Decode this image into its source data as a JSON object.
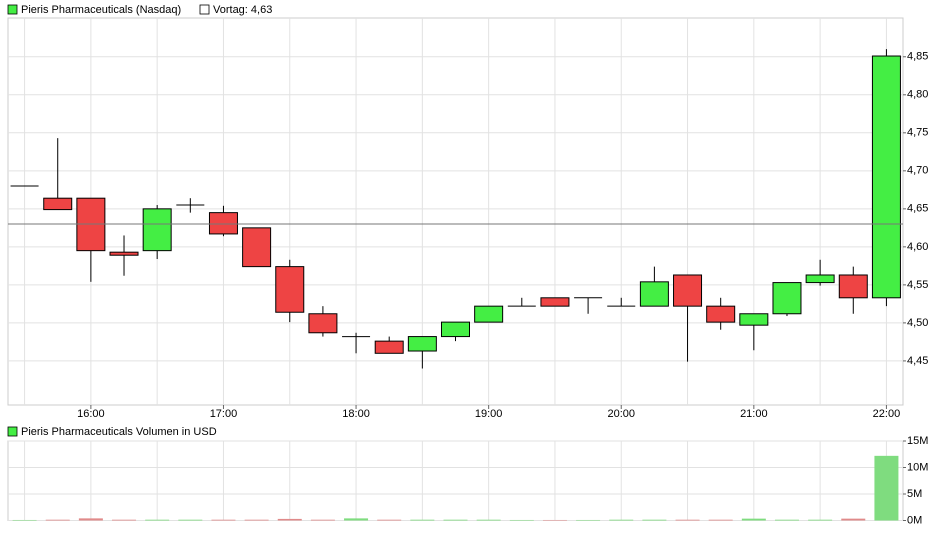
{
  "chart_data": [
    {
      "type": "candlestick",
      "series": [
        {
          "name": "Pieris Pharmaceuticals (Nasdaq)",
          "up_color": "#44ee44",
          "down_color": "#ee4444",
          "open": [
            4.68,
            4.664,
            4.664,
            4.593,
            4.595,
            4.655,
            4.645,
            4.625,
            4.574,
            4.512,
            4.482,
            4.476,
            4.463,
            4.482,
            4.501,
            4.522,
            4.533,
            4.533,
            4.522,
            4.522,
            4.563,
            4.522,
            4.497,
            4.512,
            4.553,
            4.563,
            4.533
          ],
          "high": [
            4.68,
            4.743,
            4.664,
            4.615,
            4.655,
            4.664,
            4.654,
            4.625,
            4.583,
            4.522,
            4.487,
            4.482,
            4.482,
            4.501,
            4.522,
            4.533,
            4.533,
            4.533,
            4.533,
            4.574,
            4.563,
            4.533,
            4.512,
            4.553,
            4.583,
            4.574,
            4.86
          ],
          "low": [
            4.68,
            4.649,
            4.554,
            4.562,
            4.584,
            4.645,
            4.614,
            4.574,
            4.501,
            4.482,
            4.46,
            4.46,
            4.44,
            4.476,
            4.501,
            4.522,
            4.522,
            4.512,
            4.522,
            4.522,
            4.449,
            4.491,
            4.464,
            4.509,
            4.549,
            4.512,
            4.522
          ],
          "close": [
            4.68,
            4.649,
            4.595,
            4.589,
            4.65,
            4.655,
            4.617,
            4.574,
            4.514,
            4.487,
            4.482,
            4.46,
            4.482,
            4.501,
            4.522,
            4.522,
            4.522,
            4.533,
            4.522,
            4.554,
            4.522,
            4.501,
            4.512,
            4.553,
            4.563,
            4.533,
            4.851
          ]
        }
      ],
      "categories": [
        null,
        null,
        "16:00",
        null,
        null,
        null,
        "17:00",
        null,
        null,
        null,
        "18:00",
        null,
        null,
        null,
        "19:00",
        null,
        null,
        null,
        "20:00",
        null,
        null,
        null,
        "21:00",
        null,
        null,
        null,
        "22:00"
      ],
      "previous_close": {
        "value": 4.63,
        "label": "Vortag: 4,63",
        "color": "#777777"
      },
      "ylim": [
        4.392,
        4.901
      ],
      "yticks": [
        {
          "value": 4.45,
          "label": "4,45"
        },
        {
          "value": 4.5,
          "label": "4,50"
        },
        {
          "value": 4.55,
          "label": "4,55"
        },
        {
          "value": 4.6,
          "label": "4,60"
        },
        {
          "value": 4.65,
          "label": "4,65"
        },
        {
          "value": 4.7,
          "label": "4,70"
        },
        {
          "value": 4.75,
          "label": "4,75"
        },
        {
          "value": 4.8,
          "label": "4,80"
        },
        {
          "value": 4.85,
          "label": "4,85"
        }
      ],
      "grid": true
    },
    {
      "type": "bar",
      "series": [
        {
          "name": "Pieris Pharmaceuticals Volumen in USD",
          "color": "#44ee44",
          "up_color": "#7fdc7f",
          "down_color": "#e08a8a",
          "values": [
            100000,
            150000,
            400000,
            150000,
            150000,
            150000,
            150000,
            150000,
            300000,
            150000,
            400000,
            150000,
            150000,
            150000,
            150000,
            100000,
            100000,
            100000,
            150000,
            150000,
            150000,
            150000,
            350000,
            150000,
            150000,
            350000,
            12200000
          ]
        }
      ],
      "ylim": [
        0,
        15000000
      ],
      "yticks": [
        {
          "value": 0,
          "label": "0M"
        },
        {
          "value": 5000000,
          "label": "5M"
        },
        {
          "value": 10000000,
          "label": "10M"
        },
        {
          "value": 15000000,
          "label": "15M"
        }
      ],
      "grid": true
    }
  ]
}
